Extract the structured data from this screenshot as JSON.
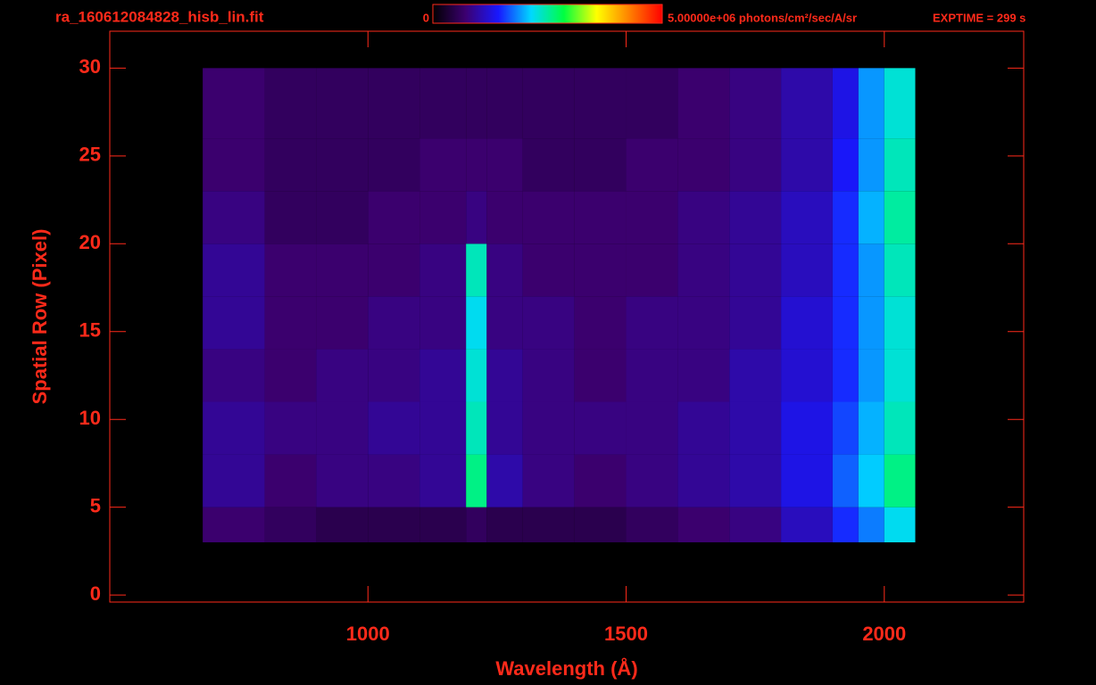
{
  "chart_data": {
    "type": "heatmap",
    "title": "ra_160612084828_hisb_lin.fit",
    "exposure_label": "EXPTIME = 299 s",
    "x_label": "Wavelength (Å)",
    "y_label": "Spatial Row (Pixel)",
    "xlim": [
      500,
      2270
    ],
    "ylim": [
      -0.4,
      32.1
    ],
    "xticks": [
      1000,
      1500,
      2000
    ],
    "yticks": [
      0,
      5,
      10,
      15,
      20,
      25,
      30
    ],
    "clim": [
      0,
      5000000
    ],
    "cticks": [
      0,
      {
        "value": 5000000,
        "label": "5.00000e+06 photons/cm²/sec/A/sr"
      }
    ],
    "colormap": [
      "#000000",
      "#3c0070",
      "#1818ff",
      "#00d8ff",
      "#00ff40",
      "#ffff00",
      "#ff8000",
      "#ff0000"
    ],
    "color": "#ff2a1a",
    "x_edges": [
      680,
      800,
      900,
      1000,
      1100,
      1190,
      1230,
      1300,
      1400,
      1500,
      1600,
      1700,
      1800,
      1900,
      1950,
      2000,
      2060
    ],
    "y_edges": [
      3,
      5,
      8,
      11,
      14,
      17,
      20,
      23,
      26,
      30
    ],
    "z": [
      [
        700000,
        600000,
        500000,
        500000,
        500000,
        600000,
        500000,
        500000,
        500000,
        600000,
        700000,
        800000,
        1100000,
        1500000,
        1800000,
        2200000
      ],
      [
        900000,
        700000,
        800000,
        800000,
        900000,
        2600000,
        1000000,
        800000,
        700000,
        800000,
        900000,
        1000000,
        1300000,
        1700000,
        2100000,
        2600000
      ],
      [
        900000,
        800000,
        800000,
        900000,
        900000,
        2400000,
        900000,
        800000,
        800000,
        800000,
        900000,
        1000000,
        1300000,
        1600000,
        2000000,
        2400000
      ],
      [
        800000,
        700000,
        800000,
        800000,
        900000,
        2300000,
        900000,
        800000,
        700000,
        800000,
        800000,
        1000000,
        1200000,
        1500000,
        1900000,
        2300000
      ],
      [
        900000,
        700000,
        700000,
        800000,
        800000,
        2200000,
        800000,
        800000,
        700000,
        800000,
        800000,
        900000,
        1200000,
        1500000,
        1900000,
        2300000
      ],
      [
        900000,
        700000,
        700000,
        700000,
        800000,
        2400000,
        800000,
        700000,
        700000,
        700000,
        800000,
        900000,
        1100000,
        1500000,
        1900000,
        2400000
      ],
      [
        800000,
        600000,
        600000,
        700000,
        700000,
        800000,
        700000,
        700000,
        700000,
        700000,
        800000,
        900000,
        1100000,
        1500000,
        2000000,
        2500000
      ],
      [
        700000,
        600000,
        600000,
        600000,
        700000,
        700000,
        700000,
        600000,
        600000,
        700000,
        700000,
        800000,
        1000000,
        1400000,
        1900000,
        2400000
      ],
      [
        700000,
        600000,
        600000,
        600000,
        600000,
        600000,
        600000,
        600000,
        600000,
        600000,
        700000,
        800000,
        1000000,
        1300000,
        1900000,
        2300000
      ]
    ]
  }
}
